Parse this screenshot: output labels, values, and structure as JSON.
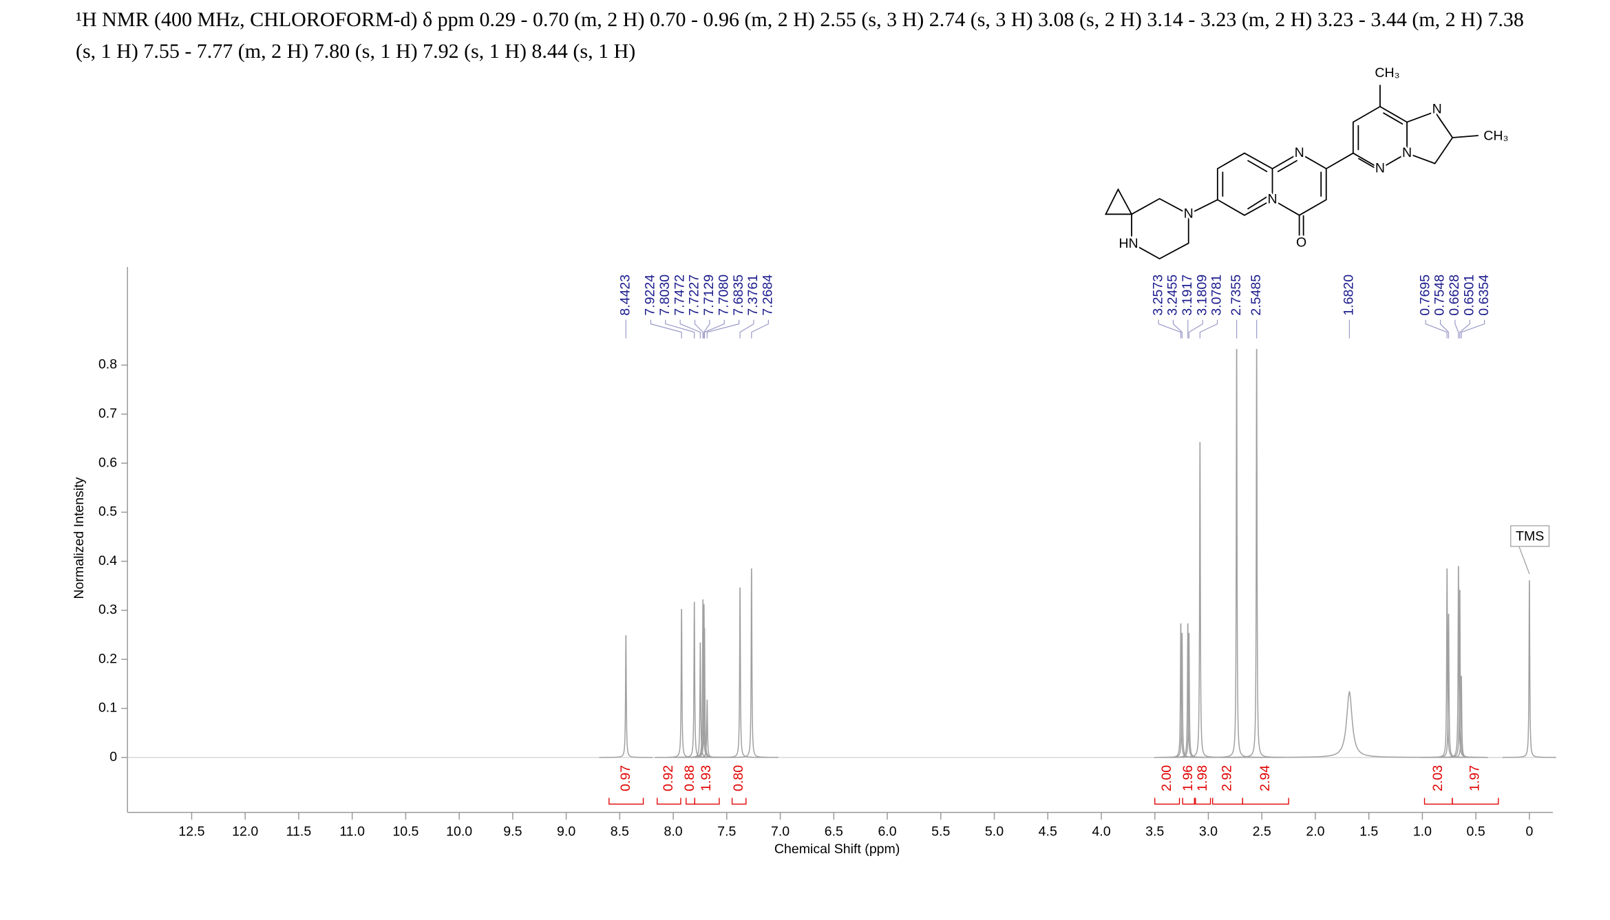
{
  "chart_data": {
    "type": "nmr",
    "title": "¹H NMR (400 MHz, CHLOROFORM-d) δ ppm 0.29 - 0.70 (m, 2 H) 0.70 - 0.96 (m, 2 H) 2.55 (s, 3 H) 2.74 (s, 3 H) 3.08 (s, 2 H) 3.14 - 3.23 (m, 2 H) 3.23 - 3.44 (m, 2 H) 7.38 (s, 1 H) 7.55 - 7.77 (m, 2 H) 7.80 (s, 1 H) 7.92 (s, 1 H) 8.44 (s, 1 H)",
    "x_label": "Chemical Shift (ppm)",
    "y_label": "Normalized Intensity",
    "xlim": [
      13.1,
      -0.22
    ],
    "ylim": [
      -0.112,
      1.0
    ],
    "xticks": [
      12.5,
      {
        "value": 12,
        "label": "12.0"
      },
      11.5,
      {
        "value": 11,
        "label": "11.0"
      },
      10.5,
      {
        "value": 10,
        "label": "10.0"
      },
      9.5,
      {
        "value": 9,
        "label": "9.0"
      },
      8.5,
      {
        "value": 8,
        "label": "8.0"
      },
      7.5,
      {
        "value": 7,
        "label": "7.0"
      },
      6.5,
      {
        "value": 6,
        "label": "6.0"
      },
      5.5,
      {
        "value": 5,
        "label": "5.0"
      },
      4.5,
      {
        "value": 4,
        "label": "4.0"
      },
      3.5,
      {
        "value": 3,
        "label": "3.0"
      },
      2.5,
      {
        "value": 2,
        "label": "2.0"
      },
      1.5,
      {
        "value": 1,
        "label": "1.0"
      },
      0.5,
      0
    ],
    "yticks": [
      0,
      0.1,
      0.2,
      0.3,
      0.4,
      0.5,
      0.6,
      0.7,
      0.8
    ],
    "color": "#a0a0a0",
    "peaks": {
      "x": [
        8.4423,
        7.9224,
        7.803,
        7.7472,
        7.7227,
        7.7129,
        7.708,
        7.6835,
        7.3761,
        7.2684,
        3.2573,
        3.2455,
        3.1917,
        3.1809,
        3.0781,
        2.7355,
        2.5485,
        1.682,
        0.7695,
        0.7548,
        0.6628,
        0.6501,
        0.6354,
        0
      ],
      "values": [
        0.255,
        0.31,
        0.325,
        0.24,
        0.33,
        0.32,
        0.27,
        0.12,
        0.355,
        0.395,
        0.28,
        0.26,
        0.28,
        0.26,
        0.66,
        0.855,
        0.855,
        0.135,
        0.395,
        0.3,
        0.4,
        0.35,
        0.17,
        0.37
      ],
      "widths": [
        0.004,
        0.004,
        0.004,
        0.004,
        0.004,
        0.004,
        0.004,
        0.004,
        0.004,
        0.004,
        0.004,
        0.004,
        0.004,
        0.004,
        0.004,
        0.004,
        0.004,
        0.03,
        0.004,
        0.004,
        0.004,
        0.004,
        0.004,
        0.004
      ]
    },
    "peak_labels": [
      8.4423,
      7.9224,
      {
        "value": 7.803,
        "label": "7.8030"
      },
      7.7472,
      7.7227,
      7.7129,
      {
        "value": 7.708,
        "label": "7.7080"
      },
      7.6835,
      7.3761,
      7.2684,
      3.2573,
      3.2455,
      3.1917,
      3.1809,
      3.0781,
      2.7355,
      2.5485,
      {
        "value": 1.682,
        "label": "1.6820"
      },
      0.7695,
      0.7548,
      0.6628,
      0.6501,
      0.6354
    ],
    "peak_label_color": "#1a1a8c",
    "integrals": {
      "values": [
        0.97,
        0.92,
        0.88,
        1.93,
        0.8,
        2.0,
        1.96,
        1.98,
        2.92,
        2.94,
        2.03,
        1.97
      ],
      "value_labels": [
        "0.97",
        "0.92",
        "0.88",
        "1.93",
        "0.80",
        "2.00",
        "1.96",
        "1.98",
        "2.92",
        "2.94",
        "2.03",
        "1.97"
      ],
      "ranges": [
        [
          8.6,
          8.28
        ],
        [
          8.15,
          7.93
        ],
        [
          7.88,
          7.8
        ],
        [
          7.8,
          7.57
        ],
        [
          7.45,
          7.32
        ],
        [
          3.5,
          3.27
        ],
        [
          3.24,
          3.13
        ],
        [
          3.12,
          2.98
        ],
        [
          2.96,
          2.68
        ],
        [
          2.68,
          2.25
        ],
        [
          0.98,
          0.72
        ],
        [
          0.72,
          0.29
        ]
      ],
      "color": "#e00000"
    },
    "reference_label": "TMS",
    "structure": {
      "labels": [
        "CH₃",
        "N",
        "CH₃",
        "N",
        "N",
        "N",
        "N",
        "N",
        "HN",
        "O"
      ]
    }
  }
}
